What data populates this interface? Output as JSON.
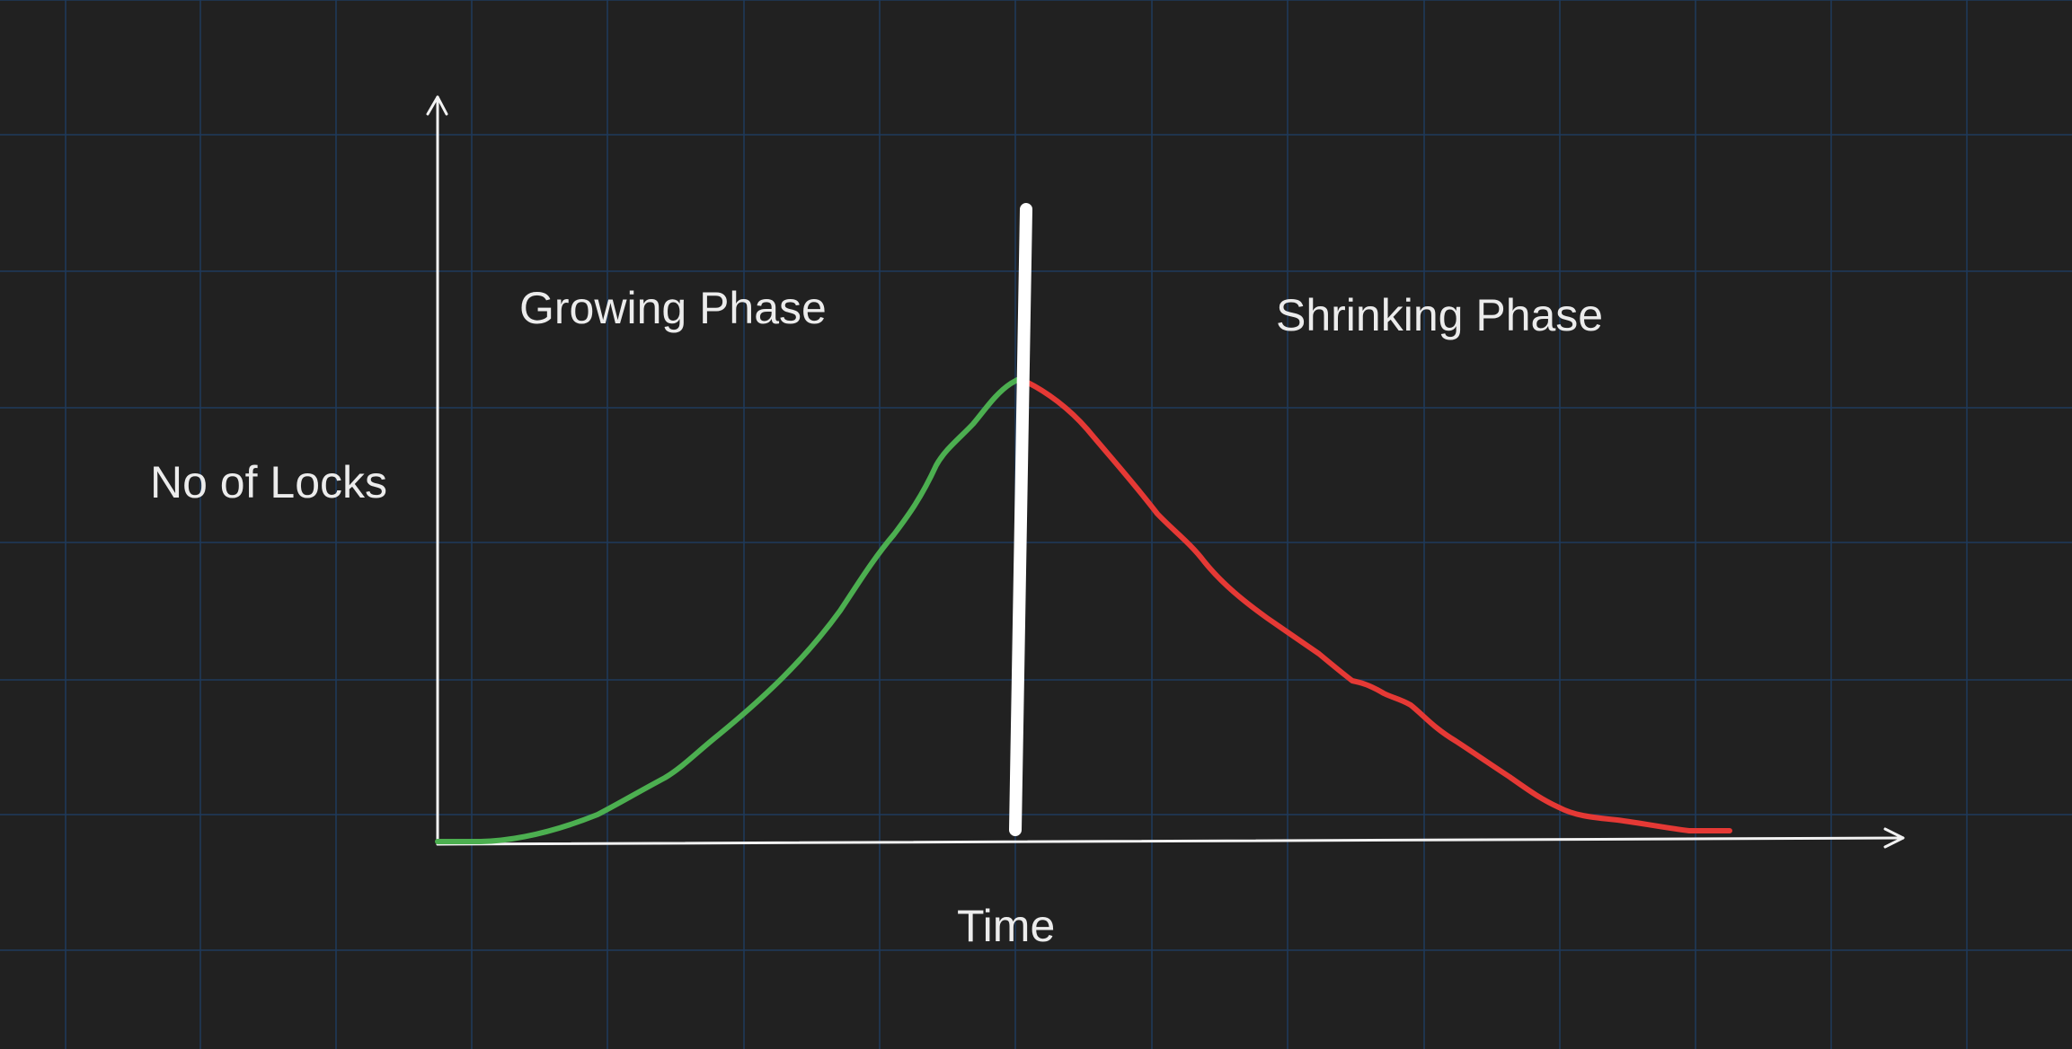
{
  "diagram": {
    "ylabel": "No of Locks",
    "xlabel": "Time",
    "phase_labels": {
      "growing": "Growing Phase",
      "shrinking": "Shrinking Phase"
    },
    "colors": {
      "background": "#212121",
      "grid": "#1f3a5c",
      "axes": "#f2f2f2",
      "growing_curve": "#4caf50",
      "shrinking_curve": "#e53935",
      "divider": "#ffffff"
    }
  }
}
